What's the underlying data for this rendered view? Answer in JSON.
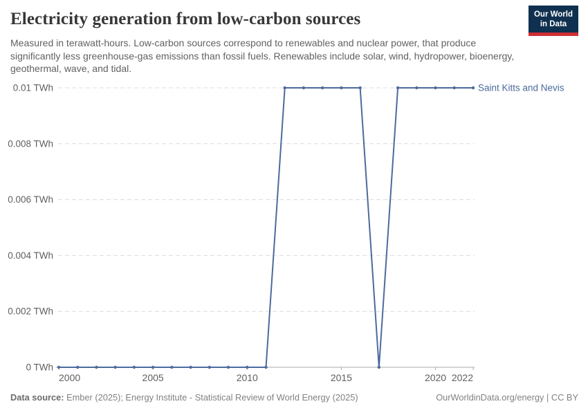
{
  "header": {
    "title": "Electricity generation from low-carbon sources",
    "subtitle": "Measured in terawatt-hours. Low-carbon sources correspond to renewables and nuclear power, that produce significantly less greenhouse-gas emissions than fossil fuels. Renewables include solar, wind, hydropower, bioenergy, geothermal, wave, and tidal.",
    "logo": {
      "line1": "Our World",
      "line2": "in Data",
      "bg_color": "#10304f",
      "bar_color": "#cf2d34"
    }
  },
  "chart_data": {
    "type": "line",
    "title": "Electricity generation from low-carbon sources",
    "x": [
      2000,
      2001,
      2002,
      2003,
      2004,
      2005,
      2006,
      2007,
      2008,
      2009,
      2010,
      2011,
      2012,
      2013,
      2014,
      2015,
      2016,
      2017,
      2018,
      2019,
      2020,
      2021,
      2022
    ],
    "series": [
      {
        "name": "Saint Kitts and Nevis",
        "color": "#4c6a9c",
        "values": [
          0,
          0,
          0,
          0,
          0,
          0,
          0,
          0,
          0,
          0,
          0,
          0,
          0.01,
          0.01,
          0.01,
          0.01,
          0.01,
          0,
          0.01,
          0.01,
          0.01,
          0.01,
          0.01
        ]
      }
    ],
    "xlabel": "",
    "ylabel": "",
    "xlim": [
      2000,
      2022
    ],
    "ylim": [
      0,
      0.01
    ],
    "xticks": [
      2000,
      2005,
      2010,
      2015,
      2020,
      2022
    ],
    "yticks": [
      0,
      0.002,
      0.004,
      0.006,
      0.008,
      0.01
    ],
    "ytick_labels": [
      "0 TWh",
      "0.002 TWh",
      "0.004 TWh",
      "0.006 TWh",
      "0.008 TWh",
      "0.01 TWh"
    ],
    "grid": true,
    "grid_color": "#dcdcdc",
    "axis_color": "#a8a8a8",
    "tick_label_color": "#5f5f5f",
    "legend_position": "end-of-line"
  },
  "footer": {
    "source_label": "Data source:",
    "source_text": " Ember (2025); Energy Institute - Statistical Review of World Energy (2025)",
    "rights": "OurWorldinData.org/energy | CC BY"
  }
}
